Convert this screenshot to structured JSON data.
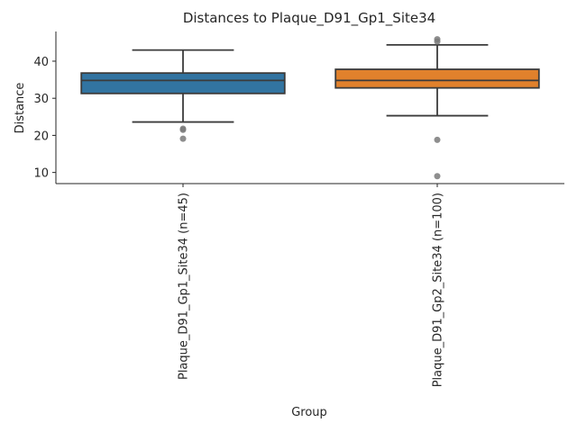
{
  "chart_data": {
    "type": "box",
    "title": "Distances to Plaque_D91_Gp1_Site34",
    "xlabel": "Group",
    "ylabel": "Distance",
    "ylim": [
      7,
      48
    ],
    "yticks": [
      10,
      20,
      30,
      40
    ],
    "grid": false,
    "categories": [
      "Plaque_D91_Gp1_Site34 (n=45)",
      "Plaque_D91_Gp2_Site34 (n=100)"
    ],
    "boxes": [
      {
        "category": "Plaque_D91_Gp1_Site34 (n=45)",
        "color": "#3274a1",
        "whisker_low": 23.6,
        "q1": 31.3,
        "median": 34.8,
        "q3": 36.8,
        "whisker_high": 43.0,
        "fliers": [
          21.8,
          21.5,
          19.1
        ]
      },
      {
        "category": "Plaque_D91_Gp2_Site34 (n=100)",
        "color": "#e1812c",
        "whisker_low": 25.3,
        "q1": 32.8,
        "median": 34.8,
        "q3": 37.8,
        "whisker_high": 44.4,
        "fliers": [
          45.9,
          45.3,
          18.8,
          9.0
        ]
      }
    ]
  }
}
